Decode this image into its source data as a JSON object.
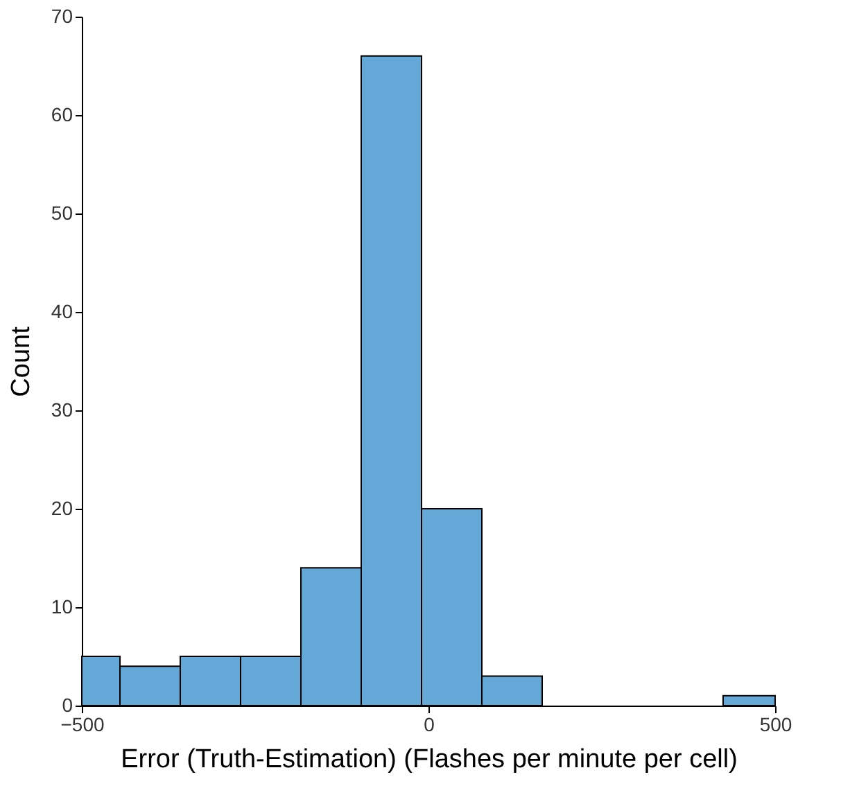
{
  "chart_data": {
    "type": "histogram",
    "xlabel": "Error (Truth-Estimation) (Flashes per minute per cell)",
    "ylabel": "Count",
    "bins": [
      -500,
      -445,
      -358,
      -271,
      -184,
      -97,
      -10,
      77,
      164,
      425,
      500
    ],
    "values": [
      5,
      4,
      5,
      5,
      14,
      66,
      20,
      3,
      0,
      1
    ],
    "color": "#63a8d7",
    "xlim": [
      -500,
      500
    ],
    "xticks": [
      -500,
      0,
      500
    ],
    "ylim": [
      0,
      70
    ],
    "yticks": [
      0,
      10,
      20,
      30,
      40,
      50,
      60,
      70
    ],
    "grid": false
  }
}
